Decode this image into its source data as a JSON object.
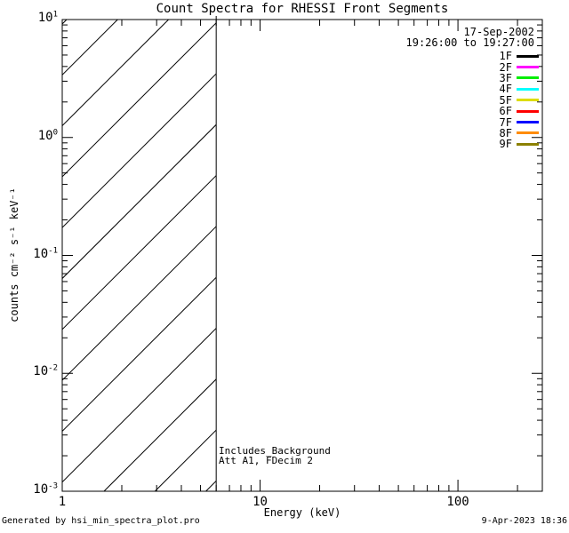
{
  "title": "Count Spectra for RHESSI Front Segments",
  "legend": {
    "date": "17-Sep-2002",
    "time_range": "19:26:00 to 19:27:00",
    "entries": [
      {
        "label": "1F",
        "color": "#000000"
      },
      {
        "label": "2F",
        "color": "#ff00ff"
      },
      {
        "label": "3F",
        "color": "#00ee00"
      },
      {
        "label": "4F",
        "color": "#00ffff"
      },
      {
        "label": "5F",
        "color": "#dddd00"
      },
      {
        "label": "6F",
        "color": "#ff0000"
      },
      {
        "label": "7F",
        "color": "#0000ff"
      },
      {
        "label": "8F",
        "color": "#ff8c00"
      },
      {
        "label": "9F",
        "color": "#8b8000"
      }
    ]
  },
  "annotations": {
    "background_note": "Includes_Background",
    "attenuator_note": "Att A1, FDecim 2"
  },
  "footer": {
    "generated_by": "Generated by hsi_min_spectra_plot.pro",
    "timestamp": "9-Apr-2023 18:36"
  },
  "chart_data": {
    "type": "line",
    "title": "Count Spectra for RHESSI Front Segments",
    "xlabel": "Energy (keV)",
    "ylabel": "counts cm⁻² s⁻¹ keV⁻¹",
    "xscale": "log",
    "yscale": "log",
    "xlim": [
      1,
      267
    ],
    "ylim": [
      0.001,
      10
    ],
    "grid": false,
    "x_major_ticks": [
      1,
      10,
      100
    ],
    "x_tick_labels": [
      "1",
      "10",
      "100"
    ],
    "y_major_tick_exponents": [
      1,
      0,
      -1,
      -2,
      -3
    ],
    "hatched_region": {
      "x_start": 1,
      "x_end": 6,
      "y_start": 0.001,
      "y_end": 10,
      "style": "diagonal-lines-45deg"
    },
    "vertical_line_x": 6,
    "legend_position": "top-right",
    "series": [
      {
        "name": "1F",
        "color": "#000000",
        "values": []
      },
      {
        "name": "2F",
        "color": "#ff00ff",
        "values": []
      },
      {
        "name": "3F",
        "color": "#00ee00",
        "values": []
      },
      {
        "name": "4F",
        "color": "#00ffff",
        "values": []
      },
      {
        "name": "5F",
        "color": "#dddd00",
        "values": []
      },
      {
        "name": "6F",
        "color": "#ff0000",
        "values": []
      },
      {
        "name": "7F",
        "color": "#0000ff",
        "values": []
      },
      {
        "name": "8F",
        "color": "#ff8c00",
        "values": []
      },
      {
        "name": "9F",
        "color": "#8b8000",
        "values": []
      }
    ],
    "visible_curves": "none"
  }
}
